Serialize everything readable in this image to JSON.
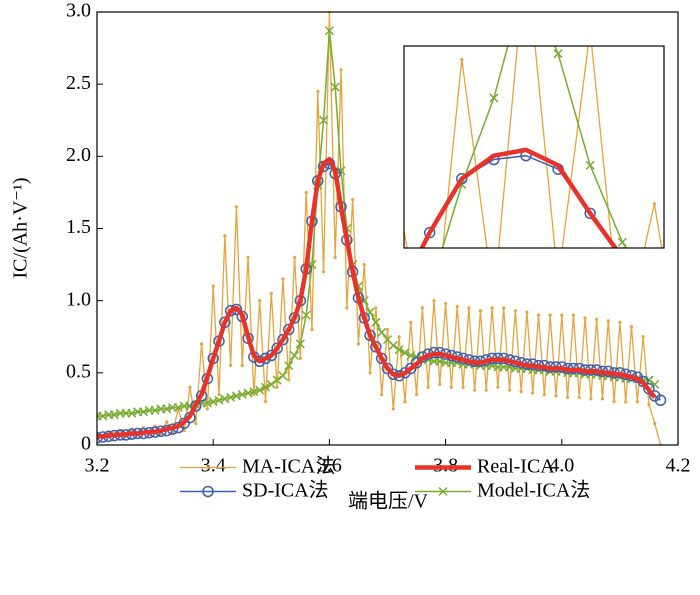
{
  "chart_data": {
    "type": "line",
    "xlabel": "端电压/V",
    "ylabel": "IC/(Ah·V⁻¹)",
    "xlim": [
      3.2,
      4.2
    ],
    "ylim": [
      0,
      3.0
    ],
    "xticks": [
      3.2,
      3.4,
      3.6,
      3.8,
      {
        "value": 4,
        "label": "4.0"
      },
      4.2
    ],
    "yticks": [
      0,
      0.5,
      {
        "value": 1,
        "label": "1.0"
      },
      1.5,
      {
        "value": 2,
        "label": "2.0"
      },
      2.5,
      {
        "value": 3,
        "label": "3.0"
      }
    ],
    "x": [
      3.2,
      3.21,
      3.22,
      3.23,
      3.24,
      3.25,
      3.26,
      3.27,
      3.28,
      3.29,
      3.3,
      3.31,
      3.32,
      3.33,
      3.34,
      3.35,
      3.36,
      3.37,
      3.38,
      3.39,
      3.4,
      3.41,
      3.42,
      3.43,
      3.44,
      3.45,
      3.46,
      3.47,
      3.48,
      3.49,
      3.5,
      3.51,
      3.52,
      3.53,
      3.54,
      3.55,
      3.56,
      3.57,
      3.58,
      3.59,
      3.6,
      3.61,
      3.62,
      3.63,
      3.64,
      3.65,
      3.66,
      3.67,
      3.68,
      3.69,
      3.7,
      3.71,
      3.72,
      3.73,
      3.74,
      3.75,
      3.76,
      3.77,
      3.78,
      3.79,
      3.8,
      3.81,
      3.82,
      3.83,
      3.84,
      3.85,
      3.86,
      3.87,
      3.88,
      3.89,
      3.9,
      3.91,
      3.92,
      3.93,
      3.94,
      3.95,
      3.96,
      3.97,
      3.98,
      3.99,
      4.0,
      4.01,
      4.02,
      4.03,
      4.04,
      4.05,
      4.06,
      4.07,
      4.08,
      4.09,
      4.1,
      4.11,
      4.12,
      4.13,
      4.14,
      4.15,
      4.16,
      4.17
    ],
    "series": [
      {
        "name": "MA-ICA法",
        "color": "#E8A33C",
        "marker": "dot",
        "values": [
          0.08,
          0.05,
          0.09,
          0.06,
          0.1,
          0.06,
          0.11,
          0.07,
          0.12,
          0.07,
          0.13,
          0.08,
          0.16,
          0.09,
          0.25,
          0.1,
          0.4,
          0.15,
          0.7,
          0.25,
          1.1,
          0.35,
          1.45,
          0.55,
          1.65,
          0.55,
          1.3,
          0.35,
          1.0,
          0.3,
          1.05,
          0.4,
          1.15,
          0.45,
          1.3,
          0.6,
          1.75,
          0.8,
          2.45,
          1.2,
          3.0,
          1.3,
          2.6,
          0.95,
          1.7,
          0.7,
          1.25,
          0.5,
          0.95,
          0.35,
          0.8,
          0.25,
          0.75,
          0.3,
          0.85,
          0.35,
          0.95,
          0.4,
          1.0,
          0.42,
          0.98,
          0.4,
          0.96,
          0.4,
          0.95,
          0.38,
          0.93,
          0.38,
          0.95,
          0.4,
          0.95,
          0.38,
          0.93,
          0.37,
          0.92,
          0.36,
          0.9,
          0.35,
          0.9,
          0.34,
          0.9,
          0.33,
          0.9,
          0.33,
          0.88,
          0.32,
          0.87,
          0.32,
          0.86,
          0.3,
          0.85,
          0.3,
          0.82,
          0.3,
          0.75,
          0.28,
          0.15,
          0
        ]
      },
      {
        "name": "Real-ICA",
        "color": "#E8322A",
        "marker": "none",
        "values": [
          0.06,
          0.06,
          0.065,
          0.07,
          0.07,
          0.075,
          0.08,
          0.08,
          0.085,
          0.09,
          0.09,
          0.1,
          0.11,
          0.12,
          0.13,
          0.16,
          0.2,
          0.28,
          0.35,
          0.47,
          0.6,
          0.72,
          0.85,
          0.93,
          0.95,
          0.9,
          0.75,
          0.62,
          0.58,
          0.6,
          0.62,
          0.67,
          0.73,
          0.8,
          0.88,
          1.0,
          1.22,
          1.55,
          1.83,
          1.95,
          1.98,
          1.9,
          1.65,
          1.42,
          1.2,
          1.02,
          0.88,
          0.76,
          0.68,
          0.6,
          0.53,
          0.49,
          0.48,
          0.5,
          0.53,
          0.56,
          0.6,
          0.62,
          0.63,
          0.63,
          0.62,
          0.61,
          0.6,
          0.59,
          0.58,
          0.57,
          0.57,
          0.58,
          0.59,
          0.59,
          0.59,
          0.58,
          0.57,
          0.56,
          0.55,
          0.55,
          0.54,
          0.54,
          0.53,
          0.53,
          0.53,
          0.52,
          0.52,
          0.52,
          0.51,
          0.51,
          0.51,
          0.5,
          0.5,
          0.49,
          0.49,
          0.48,
          0.47,
          0.46,
          0.43,
          0.38,
          0.33,
          null
        ]
      },
      {
        "name": "SD-ICA法",
        "color": "#3F5FAF",
        "marker": "circle",
        "values": [
          0.05,
          0.055,
          0.06,
          0.065,
          0.07,
          0.07,
          0.075,
          0.08,
          0.08,
          0.085,
          0.09,
          0.095,
          0.1,
          0.11,
          0.12,
          0.15,
          0.19,
          0.27,
          0.34,
          0.46,
          0.6,
          0.72,
          0.85,
          0.93,
          0.94,
          0.89,
          0.74,
          0.61,
          0.58,
          0.6,
          0.62,
          0.67,
          0.73,
          0.8,
          0.88,
          1.0,
          1.22,
          1.55,
          1.83,
          1.93,
          1.95,
          1.88,
          1.65,
          1.42,
          1.2,
          1.02,
          0.88,
          0.76,
          0.68,
          0.6,
          0.53,
          0.49,
          0.48,
          0.5,
          0.53,
          0.57,
          0.61,
          0.63,
          0.64,
          0.64,
          0.63,
          0.62,
          0.61,
          0.6,
          0.59,
          0.58,
          0.58,
          0.59,
          0.6,
          0.6,
          0.6,
          0.59,
          0.58,
          0.57,
          0.56,
          0.56,
          0.55,
          0.55,
          0.54,
          0.54,
          0.54,
          0.53,
          0.53,
          0.53,
          0.52,
          0.52,
          0.52,
          0.51,
          0.51,
          0.5,
          0.5,
          0.49,
          0.48,
          0.47,
          0.44,
          0.39,
          0.34,
          0.31
        ]
      },
      {
        "name": "Model-ICA法",
        "color": "#77AC30",
        "marker": "cross",
        "values": [
          0.2,
          0.2,
          0.21,
          0.21,
          0.22,
          0.22,
          0.22,
          0.23,
          0.23,
          0.24,
          0.24,
          0.25,
          0.25,
          0.26,
          0.26,
          0.27,
          0.27,
          0.28,
          0.29,
          0.29,
          0.3,
          0.31,
          0.32,
          0.33,
          0.34,
          0.35,
          0.36,
          0.37,
          0.38,
          0.4,
          0.42,
          0.45,
          0.48,
          0.55,
          0.62,
          0.7,
          0.9,
          1.25,
          1.8,
          2.25,
          2.87,
          2.48,
          1.9,
          1.5,
          1.25,
          1.1,
          1.0,
          0.92,
          0.85,
          0.78,
          0.73,
          0.69,
          0.66,
          0.64,
          0.62,
          0.61,
          0.6,
          0.59,
          0.58,
          0.58,
          0.57,
          0.57,
          0.57,
          0.56,
          0.56,
          0.56,
          0.55,
          0.55,
          0.55,
          0.54,
          0.54,
          0.54,
          0.53,
          0.53,
          0.53,
          0.52,
          0.52,
          0.52,
          0.51,
          0.51,
          0.51,
          0.5,
          0.5,
          0.5,
          0.49,
          0.49,
          0.49,
          0.48,
          0.48,
          0.47,
          0.47,
          0.46,
          0.46,
          0.46,
          0.45,
          0.45,
          0.42,
          null
        ]
      }
    ],
    "inset": {
      "xlim": [
        3.562,
        3.643
      ],
      "ylim": [
        1.47,
        2.52
      ]
    }
  }
}
